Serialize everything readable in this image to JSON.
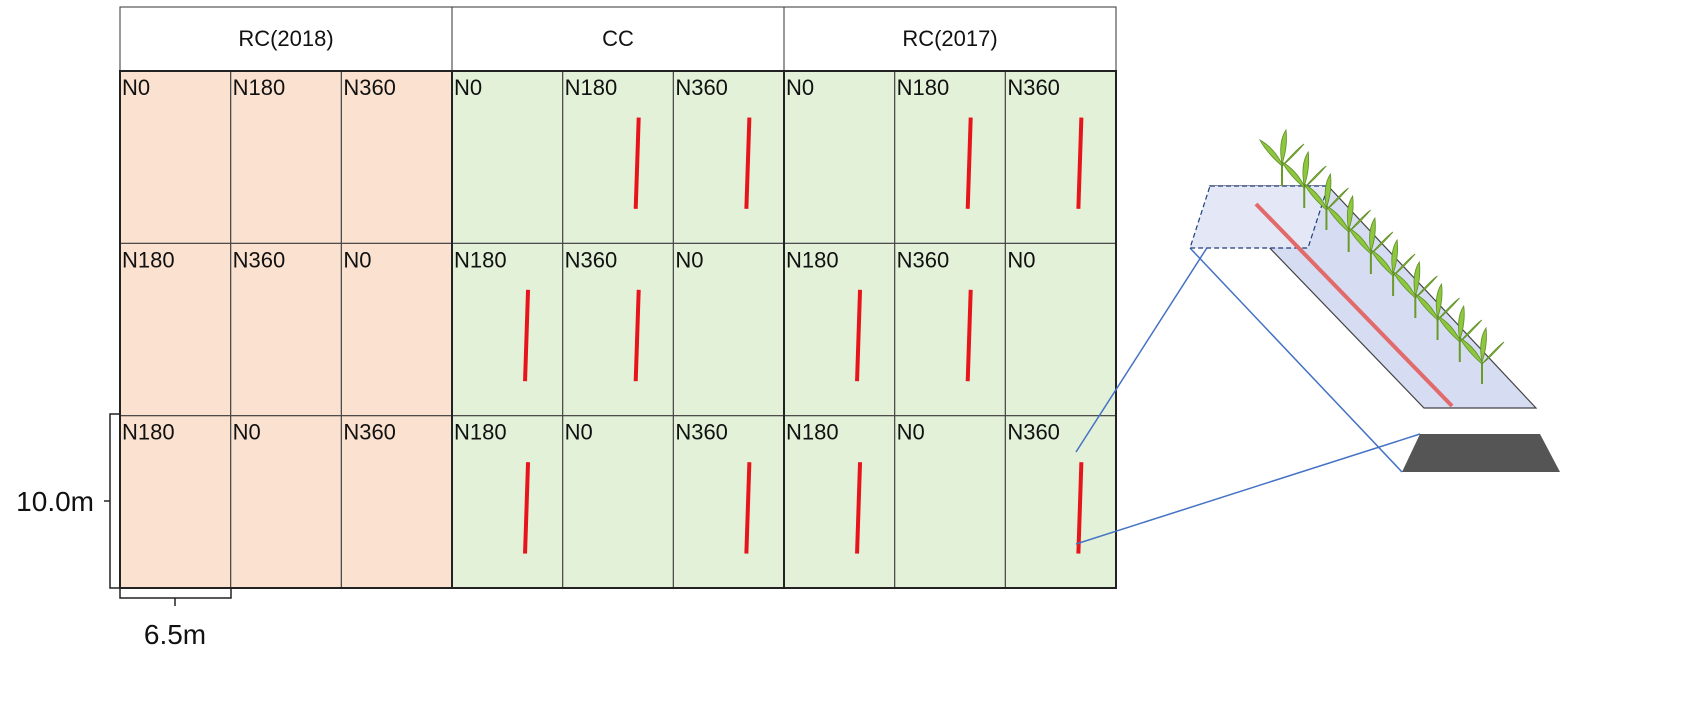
{
  "treatments": [
    {
      "label": "RC(2018)",
      "color": "#fbe2d0"
    },
    {
      "label": "CC",
      "color": "#e3f1d9"
    },
    {
      "label": "RC(2017)",
      "color": "#e3f1d9"
    }
  ],
  "plots": [
    {
      "label": "N0",
      "sensor": false
    },
    {
      "label": "N180",
      "sensor": false
    },
    {
      "label": "N360",
      "sensor": false
    },
    {
      "label": "N0",
      "sensor": false
    },
    {
      "label": "N180",
      "sensor": true
    },
    {
      "label": "N360",
      "sensor": true
    },
    {
      "label": "N0",
      "sensor": false
    },
    {
      "label": "N180",
      "sensor": true
    },
    {
      "label": "N360",
      "sensor": true
    },
    {
      "label": "N180",
      "sensor": false
    },
    {
      "label": "N360",
      "sensor": false
    },
    {
      "label": "N0",
      "sensor": false
    },
    {
      "label": "N180",
      "sensor": true
    },
    {
      "label": "N360",
      "sensor": true
    },
    {
      "label": "N0",
      "sensor": false
    },
    {
      "label": "N180",
      "sensor": true
    },
    {
      "label": "N360",
      "sensor": true
    },
    {
      "label": "N0",
      "sensor": false
    },
    {
      "label": "N180",
      "sensor": false
    },
    {
      "label": "N0",
      "sensor": false
    },
    {
      "label": "N360",
      "sensor": false
    },
    {
      "label": "N180",
      "sensor": true
    },
    {
      "label": "N0",
      "sensor": false
    },
    {
      "label": "N360",
      "sensor": true
    },
    {
      "label": "N180",
      "sensor": true
    },
    {
      "label": "N0",
      "sensor": false
    },
    {
      "label": "N360",
      "sensor": true
    }
  ],
  "dimensions": {
    "height_label": "10.0m",
    "width_label": "6.5m"
  },
  "colors": {
    "sensor_line": "#e8141c",
    "connector": "#4472c4",
    "soil_bed": "#555555",
    "plant": "#8dc63f"
  }
}
